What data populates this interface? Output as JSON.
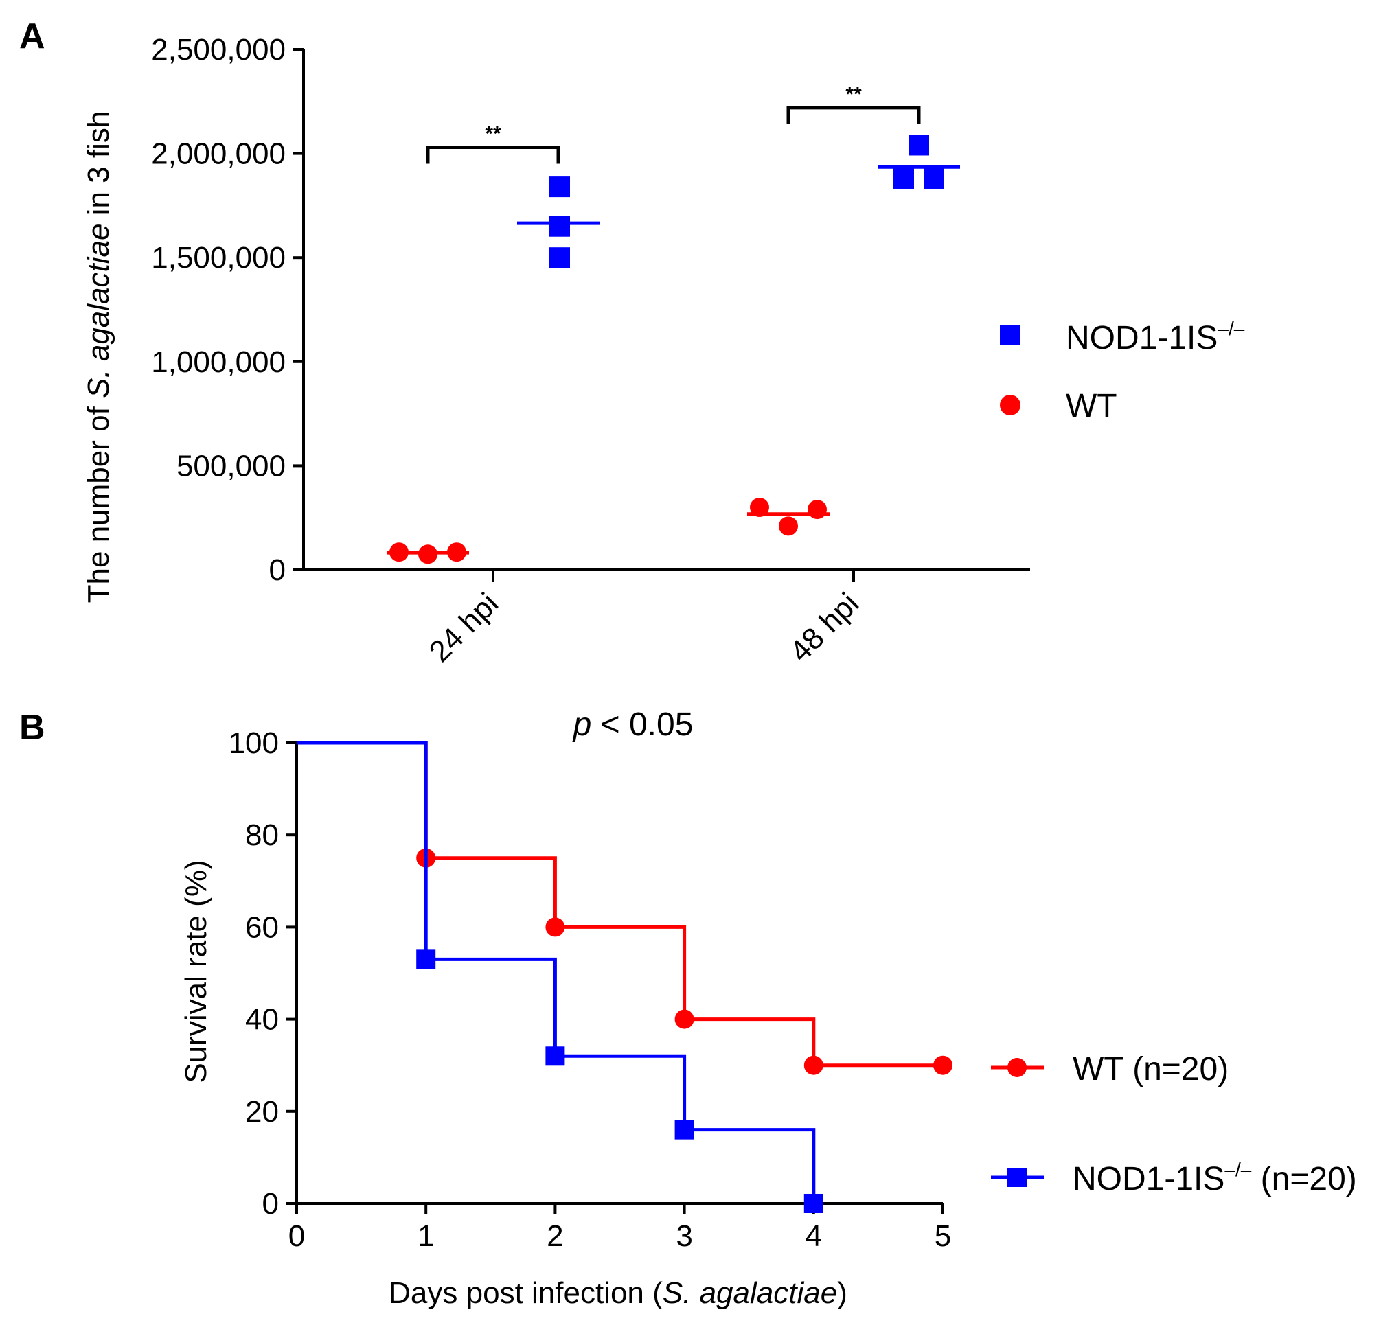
{
  "chart_data": [
    {
      "panel_label": "A",
      "type": "scatter",
      "ylabel_prefix": "The number of ",
      "ylabel_italic": "S. agalactiae",
      "ylabel_suffix": " in 3 fish",
      "ylim": [
        0,
        2500000
      ],
      "yticks": [
        0,
        500000,
        1000000,
        1500000,
        2000000,
        2500000
      ],
      "ytick_labels": [
        "0",
        "500,000",
        "1,000,000",
        "1,500,000",
        "2,000,000",
        "2,500,000"
      ],
      "categories": [
        "24 hpi",
        "48 hpi"
      ],
      "series": [
        {
          "name": "WT",
          "color": "#ff0000",
          "marker": "circle",
          "values": [
            [
              85000,
              75000,
              85000
            ],
            [
              300000,
              210000,
              290000
            ]
          ],
          "means": [
            82000,
            268000
          ]
        },
        {
          "name_main": "NOD1-1IS",
          "name_sup": "–/–",
          "color": "#0000ff",
          "marker": "square",
          "values": [
            [
              1840000,
              1650000,
              1500000
            ],
            [
              2040000,
              1880000,
              1880000
            ]
          ],
          "means": [
            1665000,
            1935000
          ]
        }
      ],
      "significance": [
        {
          "category": "24 hpi",
          "label": "**",
          "bracket_value": 2030000
        },
        {
          "category": "48 hpi",
          "label": "**",
          "bracket_value": 2220000
        }
      ],
      "legend_position": "right"
    },
    {
      "panel_label": "B",
      "type": "line",
      "annotation_italic": "p",
      "annotation_rest": " < 0.05",
      "ylabel": "Survival rate (%)",
      "xlabel_prefix": "Days post infection (",
      "xlabel_italic": "S. agalactiae",
      "xlabel_suffix": ")",
      "xlim": [
        0,
        5
      ],
      "ylim": [
        0,
        100
      ],
      "xticks": [
        0,
        1,
        2,
        3,
        4,
        5
      ],
      "yticks": [
        0,
        20,
        40,
        60,
        80,
        100
      ],
      "series": [
        {
          "name": "WT (n=20)",
          "color": "#ff0000",
          "marker": "circle",
          "x": [
            0,
            1,
            2,
            3,
            4,
            5
          ],
          "y": [
            100,
            75,
            60,
            40,
            30,
            30
          ]
        },
        {
          "name_main": "NOD1-1IS",
          "name_sup": "–/–",
          "name_tail": " (n=20)",
          "color": "#0000ff",
          "marker": "square",
          "x": [
            0,
            1,
            2,
            3,
            4
          ],
          "y": [
            100,
            53,
            32,
            16,
            0
          ]
        }
      ],
      "legend_position": "right"
    }
  ]
}
